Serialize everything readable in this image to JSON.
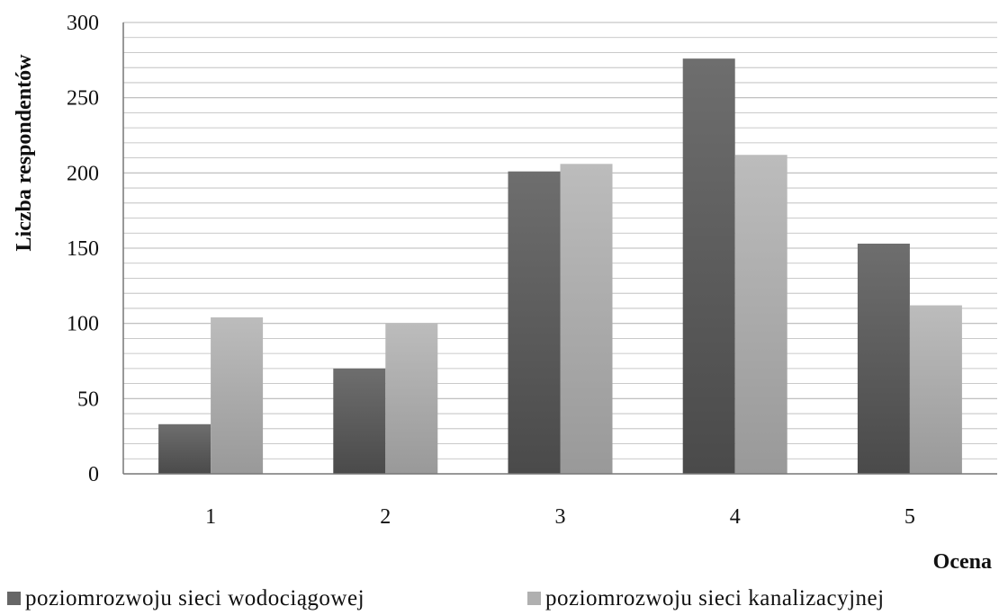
{
  "chart_data": {
    "type": "bar",
    "xlabel": "Ocena",
    "ylabel": "Liczba respondentów",
    "categories": [
      "1",
      "2",
      "3",
      "4",
      "5"
    ],
    "ylim": [
      0,
      300
    ],
    "yticks": [
      0,
      50,
      100,
      150,
      200,
      250,
      300
    ],
    "minor_gridlines": true,
    "legend_position": "bottom",
    "series": [
      {
        "name": "poziomrozwoju sieci wodociągowej",
        "values": [
          33,
          70,
          201,
          276,
          153
        ],
        "color": "#666666"
      },
      {
        "name": "poziomrozwoju sieci kanalizacyjnej",
        "values": [
          104,
          100,
          206,
          212,
          112
        ],
        "color": "#b0b0b0"
      }
    ]
  }
}
